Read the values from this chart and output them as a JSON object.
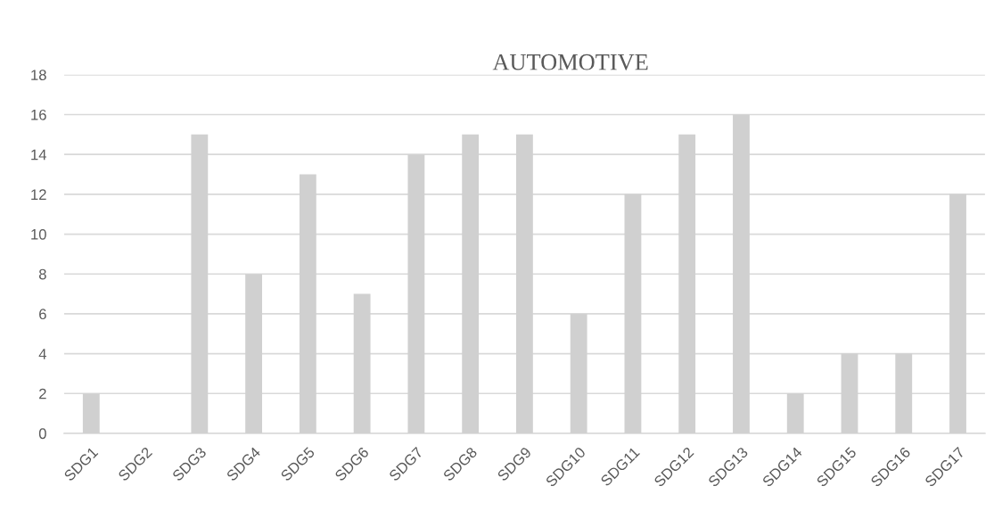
{
  "chart_data": {
    "type": "bar",
    "title": "AUTOMOTIVE",
    "categories": [
      "SDG1",
      "SDG2",
      "SDG3",
      "SDG4",
      "SDG5",
      "SDG6",
      "SDG7",
      "SDG8",
      "SDG9",
      "SDG10",
      "SDG11",
      "SDG12",
      "SDG13",
      "SDG14",
      "SDG15",
      "SDG16",
      "SDG17"
    ],
    "values": [
      2,
      0,
      15,
      8,
      13,
      7,
      14,
      15,
      15,
      6,
      12,
      15,
      16,
      2,
      4,
      4,
      12
    ],
    "color": "#d0d0d0",
    "ylim": [
      0,
      18
    ],
    "yticks": [
      0,
      2,
      4,
      6,
      8,
      10,
      12,
      14,
      16,
      18
    ],
    "grid": "y"
  }
}
